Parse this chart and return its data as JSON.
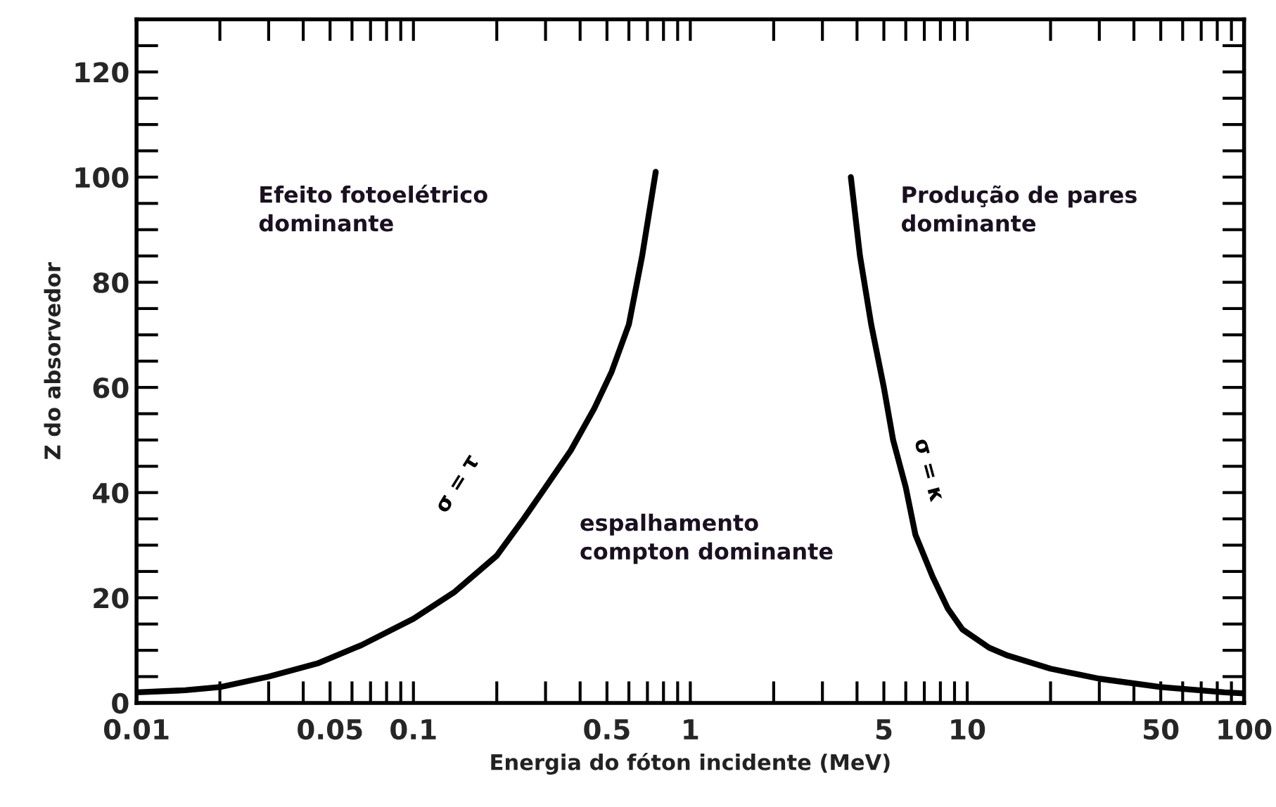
{
  "chart_data": {
    "type": "line",
    "xlabel": "Energia do fóton incidente (MeV)",
    "ylabel": "Z do absorvedor",
    "log": "x",
    "xlim": [
      0.01,
      100
    ],
    "ylim": [
      0,
      130
    ],
    "xticks": [
      0.01,
      0.05,
      0.1,
      0.5,
      1,
      5,
      10,
      50,
      100
    ],
    "yticks": [
      0,
      {
        "value": 10,
        "label": null
      },
      20,
      {
        "value": 30,
        "label": null
      },
      40,
      {
        "value": 50,
        "label": null
      },
      60,
      {
        "value": 70,
        "label": null
      },
      80,
      {
        "value": 90,
        "label": null
      },
      100,
      {
        "value": 110,
        "label": null
      },
      120
    ],
    "grid": false,
    "legend": false,
    "marker": "none",
    "line_style": "solid",
    "series": [
      {
        "color": "#000000",
        "x": [
          0.01,
          0.015,
          0.02,
          0.03,
          0.045,
          0.065,
          0.1,
          0.14,
          0.2,
          0.25,
          0.3,
          0.37,
          0.45,
          0.52,
          0.6,
          0.67,
          0.75
        ],
        "values": [
          2,
          2.4,
          3,
          5,
          7.5,
          11,
          16,
          21,
          28,
          35,
          41,
          48,
          56,
          63,
          72,
          85,
          101
        ]
      },
      {
        "color": "#000000",
        "x": [
          3.8,
          4.1,
          4.5,
          5,
          5.4,
          6,
          6.5,
          7.5,
          8.5,
          9.6,
          12,
          14,
          20,
          30,
          50,
          85,
          100
        ],
        "values": [
          100,
          85,
          72,
          60,
          50,
          41,
          32,
          24,
          18,
          14,
          10.5,
          9,
          6.5,
          4.6,
          3,
          2,
          1.8
        ]
      }
    ],
    "annotations": [
      "σ = τ",
      "σ = κ",
      "Efeito fotoelétrico\ndominante",
      "espalhamento\ncompton dominante",
      "Produção de pares\ndominante"
    ]
  }
}
